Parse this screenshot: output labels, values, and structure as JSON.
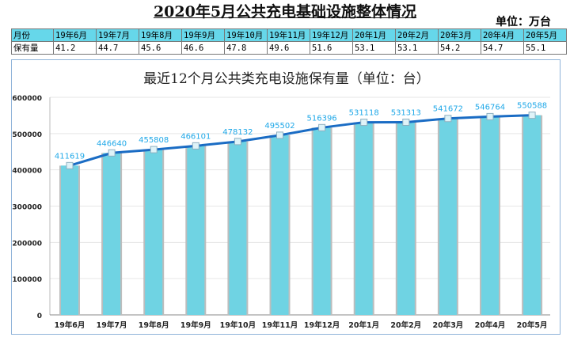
{
  "title": "2020年5月公共充电基础设施整体情况",
  "unit": "单位：万台",
  "table": {
    "header_label": "月份",
    "row_label": "保有量",
    "months": [
      "19年6月",
      "19年7月",
      "19年8月",
      "19年9月",
      "19年10月",
      "19年11月",
      "19年12月",
      "20年1月",
      "20年2月",
      "20年3月",
      "20年4月",
      "20年5月"
    ],
    "values": [
      "41.2",
      "44.7",
      "45.6",
      "46.6",
      "47.8",
      "49.6",
      "51.6",
      "53.1",
      "53.1",
      "54.2",
      "54.7",
      "55.1"
    ]
  },
  "chart_data": {
    "type": "bar+line",
    "title": "最近12个月公共类充电设施保有量（单位：台）",
    "categories": [
      "19年6月",
      "19年7月",
      "19年8月",
      "19年9月",
      "19年10月",
      "19年11月",
      "19年12月",
      "20年1月",
      "20年2月",
      "20年3月",
      "20年4月",
      "20年5月"
    ],
    "values": [
      411619,
      446640,
      455808,
      466101,
      478132,
      495502,
      516396,
      531118,
      531313,
      541672,
      546764,
      550588
    ],
    "ylim": [
      0,
      600000
    ],
    "yticks": [
      0,
      100000,
      200000,
      300000,
      400000,
      500000,
      600000
    ],
    "grid": true,
    "colors": {
      "bar": "#6fd3e3",
      "line": "#1a6cc4",
      "label": "#1fa8e8"
    }
  }
}
